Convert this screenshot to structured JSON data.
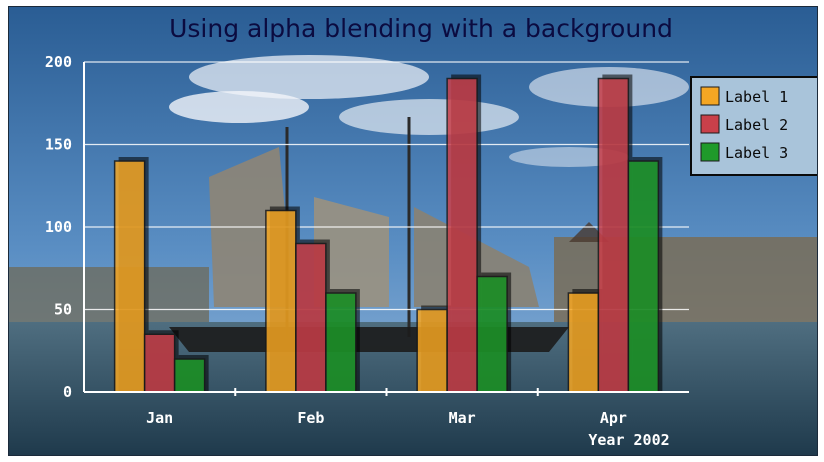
{
  "chart_data": {
    "type": "bar",
    "title": "Using alpha blending with a background",
    "categories": [
      "Jan",
      "Feb",
      "Mar",
      "Apr"
    ],
    "xlabel": "Year 2002",
    "ylabel": "",
    "ylim": [
      0,
      200
    ],
    "yticks": [
      "0",
      "50",
      "100",
      "150",
      "200"
    ],
    "grid": true,
    "legend_position": "top-right",
    "series": [
      {
        "name": "Label 1",
        "color": "#f5a623",
        "values": [
          140,
          110,
          50,
          60
        ]
      },
      {
        "name": "Label 2",
        "color": "#c9404a",
        "values": [
          35,
          90,
          190,
          190
        ]
      },
      {
        "name": "Label 3",
        "color": "#1f9a2a",
        "values": [
          20,
          60,
          70,
          140
        ]
      }
    ]
  }
}
